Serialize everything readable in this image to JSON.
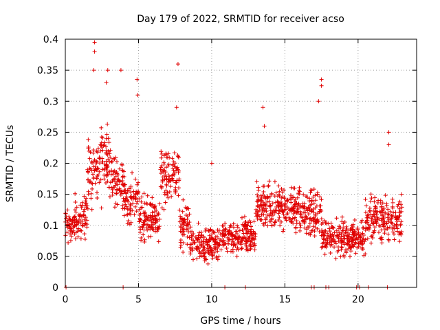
{
  "chart_data": {
    "type": "scatter",
    "title": "Day 179 of 2022, SRMTID for receiver acso",
    "xlabel": "GPS time / hours",
    "ylabel": "SRMTID / TECUs",
    "xlim": [
      0,
      24
    ],
    "ylim": [
      0,
      0.4
    ],
    "xticks": [
      0,
      5,
      10,
      15,
      20
    ],
    "xtick_labels": [
      "0",
      "5",
      "10",
      "15",
      "20"
    ],
    "yticks": [
      0,
      0.05,
      0.1,
      0.15,
      0.2,
      0.25,
      0.3,
      0.35,
      0.4
    ],
    "ytick_labels": [
      "0",
      "0.05",
      "0.1",
      "0.15",
      "0.2",
      "0.25",
      "0.3",
      "0.35",
      "0.4"
    ],
    "grid": true,
    "marker": "+",
    "color": "#e00000",
    "series": [
      {
        "name": "SRMTID",
        "profile": [
          {
            "x0": 0.0,
            "x1": 0.5,
            "base": 0.1,
            "spread": 0.04
          },
          {
            "x0": 0.5,
            "x1": 1.5,
            "base": 0.11,
            "spread": 0.05
          },
          {
            "x0": 1.5,
            "x1": 2.2,
            "base": 0.18,
            "spread": 0.09
          },
          {
            "x0": 2.2,
            "x1": 3.2,
            "base": 0.2,
            "spread": 0.08
          },
          {
            "x0": 3.2,
            "x1": 4.0,
            "base": 0.17,
            "spread": 0.06
          },
          {
            "x0": 4.0,
            "x1": 5.0,
            "base": 0.14,
            "spread": 0.05
          },
          {
            "x0": 5.0,
            "x1": 6.5,
            "base": 0.11,
            "spread": 0.05
          },
          {
            "x0": 6.5,
            "x1": 7.8,
            "base": 0.18,
            "spread": 0.06
          },
          {
            "x0": 7.8,
            "x1": 8.5,
            "base": 0.1,
            "spread": 0.05
          },
          {
            "x0": 8.5,
            "x1": 10.5,
            "base": 0.07,
            "spread": 0.04
          },
          {
            "x0": 10.5,
            "x1": 13.0,
            "base": 0.08,
            "spread": 0.04
          },
          {
            "x0": 13.0,
            "x1": 16.0,
            "base": 0.13,
            "spread": 0.05
          },
          {
            "x0": 16.0,
            "x1": 17.5,
            "base": 0.12,
            "spread": 0.05
          },
          {
            "x0": 17.5,
            "x1": 20.5,
            "base": 0.08,
            "spread": 0.04
          },
          {
            "x0": 20.5,
            "x1": 23.0,
            "base": 0.11,
            "spread": 0.05
          }
        ],
        "spikes": [
          {
            "x": 2.0,
            "y": 0.38
          },
          {
            "x": 2.0,
            "y": 0.395
          },
          {
            "x": 1.95,
            "y": 0.35
          },
          {
            "x": 2.8,
            "y": 0.33
          },
          {
            "x": 2.9,
            "y": 0.35
          },
          {
            "x": 3.8,
            "y": 0.35
          },
          {
            "x": 4.9,
            "y": 0.335
          },
          {
            "x": 4.95,
            "y": 0.31
          },
          {
            "x": 7.7,
            "y": 0.36
          },
          {
            "x": 7.6,
            "y": 0.29
          },
          {
            "x": 13.5,
            "y": 0.29
          },
          {
            "x": 13.6,
            "y": 0.26
          },
          {
            "x": 17.5,
            "y": 0.335
          },
          {
            "x": 17.5,
            "y": 0.325
          },
          {
            "x": 17.3,
            "y": 0.3
          },
          {
            "x": 22.1,
            "y": 0.25
          },
          {
            "x": 22.1,
            "y": 0.23
          },
          {
            "x": 10.0,
            "y": 0.2
          }
        ],
        "zeros": [
          0.05,
          3.95,
          10.9,
          12.3,
          16.8,
          17.0,
          17.8,
          18.0,
          19.9,
          20.1,
          20.7,
          22.0
        ]
      }
    ]
  }
}
